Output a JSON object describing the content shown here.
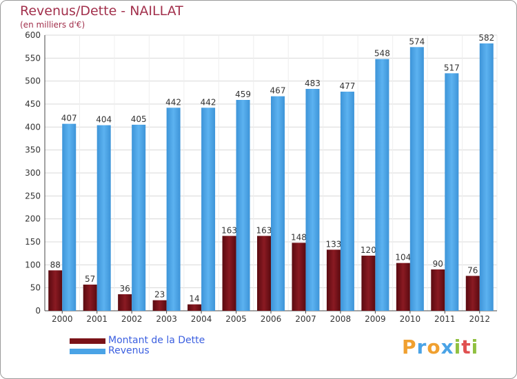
{
  "header": {
    "title": "Revenus/Dette - NAILLAT",
    "subtitle": "(en milliers d'€)"
  },
  "chart_data": {
    "type": "bar",
    "categories": [
      "2000",
      "2001",
      "2002",
      "2003",
      "2004",
      "2005",
      "2006",
      "2007",
      "2008",
      "2009",
      "2010",
      "2011",
      "2012"
    ],
    "series": [
      {
        "name": "Montant de la Dette",
        "color": "#7a1218",
        "values": [
          88,
          57,
          36,
          23,
          14,
          163,
          163,
          148,
          133,
          120,
          104,
          90,
          76
        ]
      },
      {
        "name": "Revenus",
        "color": "#4aa3e6",
        "values": [
          407,
          404,
          405,
          442,
          442,
          459,
          467,
          483,
          477,
          548,
          574,
          517,
          582
        ]
      }
    ],
    "ylim": [
      0,
      600
    ],
    "yticks": [
      0,
      50,
      100,
      150,
      200,
      250,
      300,
      350,
      400,
      450,
      500,
      550,
      600
    ],
    "grid": true,
    "legend_position": "bottom-left",
    "xlabel": "",
    "ylabel": ""
  },
  "logo": {
    "letters": [
      {
        "ch": "P",
        "color": "#f0a030"
      },
      {
        "ch": "r",
        "color": "#4aa3e6"
      },
      {
        "ch": "o",
        "color": "#f0a030"
      },
      {
        "ch": "x",
        "color": "#4aa3e6"
      },
      {
        "ch": "i",
        "color": "#90c040"
      },
      {
        "ch": "t",
        "color": "#e05050"
      },
      {
        "ch": "i",
        "color": "#90c040"
      }
    ]
  }
}
